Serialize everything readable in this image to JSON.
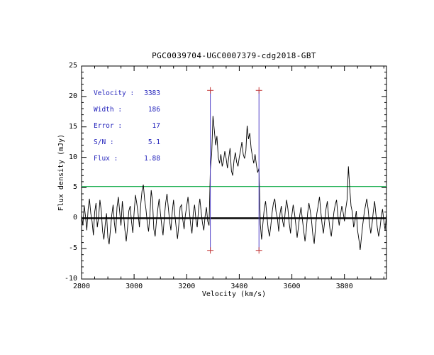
{
  "chart_data": {
    "type": "line",
    "title": "PGC0039704-UGC0007379-cdg2018-GBT",
    "xlabel": "Velocity (km/s)",
    "ylabel": "Flux density (mJy)",
    "xlim": [
      2800,
      3960
    ],
    "ylim": [
      -10,
      25
    ],
    "x_ticks": [
      2800,
      3000,
      3200,
      3400,
      3600,
      3800
    ],
    "y_ticks": [
      -10,
      -5,
      0,
      5,
      10,
      15,
      20,
      25
    ],
    "x_minor_step": 50,
    "y_minor_step": 1,
    "grid": false,
    "series": [
      {
        "name": "spectrum",
        "color": "#000000",
        "x_start": 2800,
        "x_step": 5,
        "values": [
          0.5,
          -1.2,
          2.1,
          0.3,
          -2.0,
          1.5,
          3.2,
          0.8,
          -0.5,
          -2.8,
          1.0,
          2.5,
          -1.5,
          0.2,
          3.0,
          1.2,
          -2.2,
          -3.5,
          -1.0,
          0.8,
          -3.2,
          -4.3,
          -1.8,
          0.5,
          2.2,
          -0.8,
          -2.5,
          1.8,
          3.5,
          1.0,
          -1.2,
          2.8,
          0.5,
          -2.0,
          -3.8,
          -1.5,
          1.2,
          2.0,
          -0.5,
          -2.4,
          0.9,
          3.8,
          2.5,
          0.8,
          -1.5,
          2.2,
          4.5,
          5.5,
          3.0,
          1.5,
          -0.8,
          -2.2,
          0.5,
          4.6,
          2.8,
          -1.8,
          -3.0,
          -0.5,
          1.5,
          3.2,
          0.8,
          -1.2,
          -2.8,
          0.2,
          2.5,
          4.0,
          1.8,
          -0.5,
          -2.0,
          1.0,
          3.0,
          0.5,
          -1.5,
          -3.4,
          -1.0,
          1.8,
          2.2,
          -0.2,
          -1.8,
          0.5,
          2.0,
          3.5,
          1.2,
          -1.0,
          -2.5,
          0.8,
          2.2,
          -0.3,
          -1.5,
          1.5,
          3.2,
          1.0,
          -0.8,
          -2.0,
          0.3,
          1.8,
          -0.5,
          -1.2,
          8.0,
          10.5,
          16.8,
          14.5,
          12.0,
          13.5,
          10.0,
          9.0,
          10.5,
          8.5,
          9.5,
          11.0,
          9.8,
          8.2,
          10.0,
          11.5,
          7.8,
          7.0,
          9.5,
          10.8,
          9.2,
          8.5,
          10.0,
          11.2,
          12.5,
          10.5,
          9.8,
          11.0,
          15.2,
          13.0,
          14.0,
          11.5,
          10.2,
          9.0,
          10.5,
          8.8,
          7.5,
          8.2,
          -1.0,
          -3.5,
          -0.8,
          1.5,
          2.8,
          0.5,
          -1.8,
          -3.0,
          -1.2,
          1.0,
          2.5,
          3.2,
          1.0,
          0.0,
          -2.2,
          0.8,
          2.0,
          -0.5,
          -1.5,
          1.2,
          3.0,
          1.5,
          -0.8,
          -2.5,
          0.5,
          2.2,
          0.8,
          -1.0,
          -3.2,
          -1.5,
          0.5,
          1.8,
          -0.2,
          -2.0,
          -3.8,
          -2.0,
          0.8,
          2.5,
          1.2,
          -0.5,
          -2.8,
          -4.2,
          -1.5,
          0.8,
          2.0,
          3.5,
          1.2,
          -1.0,
          -2.5,
          -0.5,
          1.5,
          2.8,
          0.2,
          -1.8,
          -3.0,
          -1.0,
          1.0,
          2.2,
          3.0,
          0.5,
          -1.2,
          0.5,
          2.0,
          1.0,
          -0.5,
          1.5,
          3.0,
          8.5,
          5.0,
          2.0,
          1.0,
          -1.5,
          -0.5,
          1.2,
          -2.0,
          -3.5,
          -5.2,
          -3.0,
          -1.0,
          0.8,
          2.0,
          3.2,
          1.5,
          -0.8,
          -2.5,
          -1.0,
          1.2,
          2.8,
          0.5,
          -1.5,
          -3.0,
          -1.8,
          0.2,
          1.5,
          -0.5,
          -2.0,
          0.8
        ]
      }
    ],
    "baseline": {
      "y": 0,
      "color": "#000000"
    },
    "threshold_line": {
      "y": 5.2,
      "color": "#00a53c"
    },
    "signal_markers": {
      "x": [
        3290,
        3475
      ],
      "y_top": 21,
      "y_bottom": -5.3,
      "line_color": "#5244c9",
      "cap_color": "#c43b3b"
    },
    "fit_results": {
      "color": "#2222bb",
      "rows": [
        {
          "label": "Velocity :",
          "value": "3383"
        },
        {
          "label": "Width :",
          "value": "186"
        },
        {
          "label": "Error :",
          "value": "17"
        },
        {
          "label": "S/N :",
          "value": "5.1"
        },
        {
          "label": "Flux :",
          "value": "1.88"
        }
      ]
    }
  }
}
